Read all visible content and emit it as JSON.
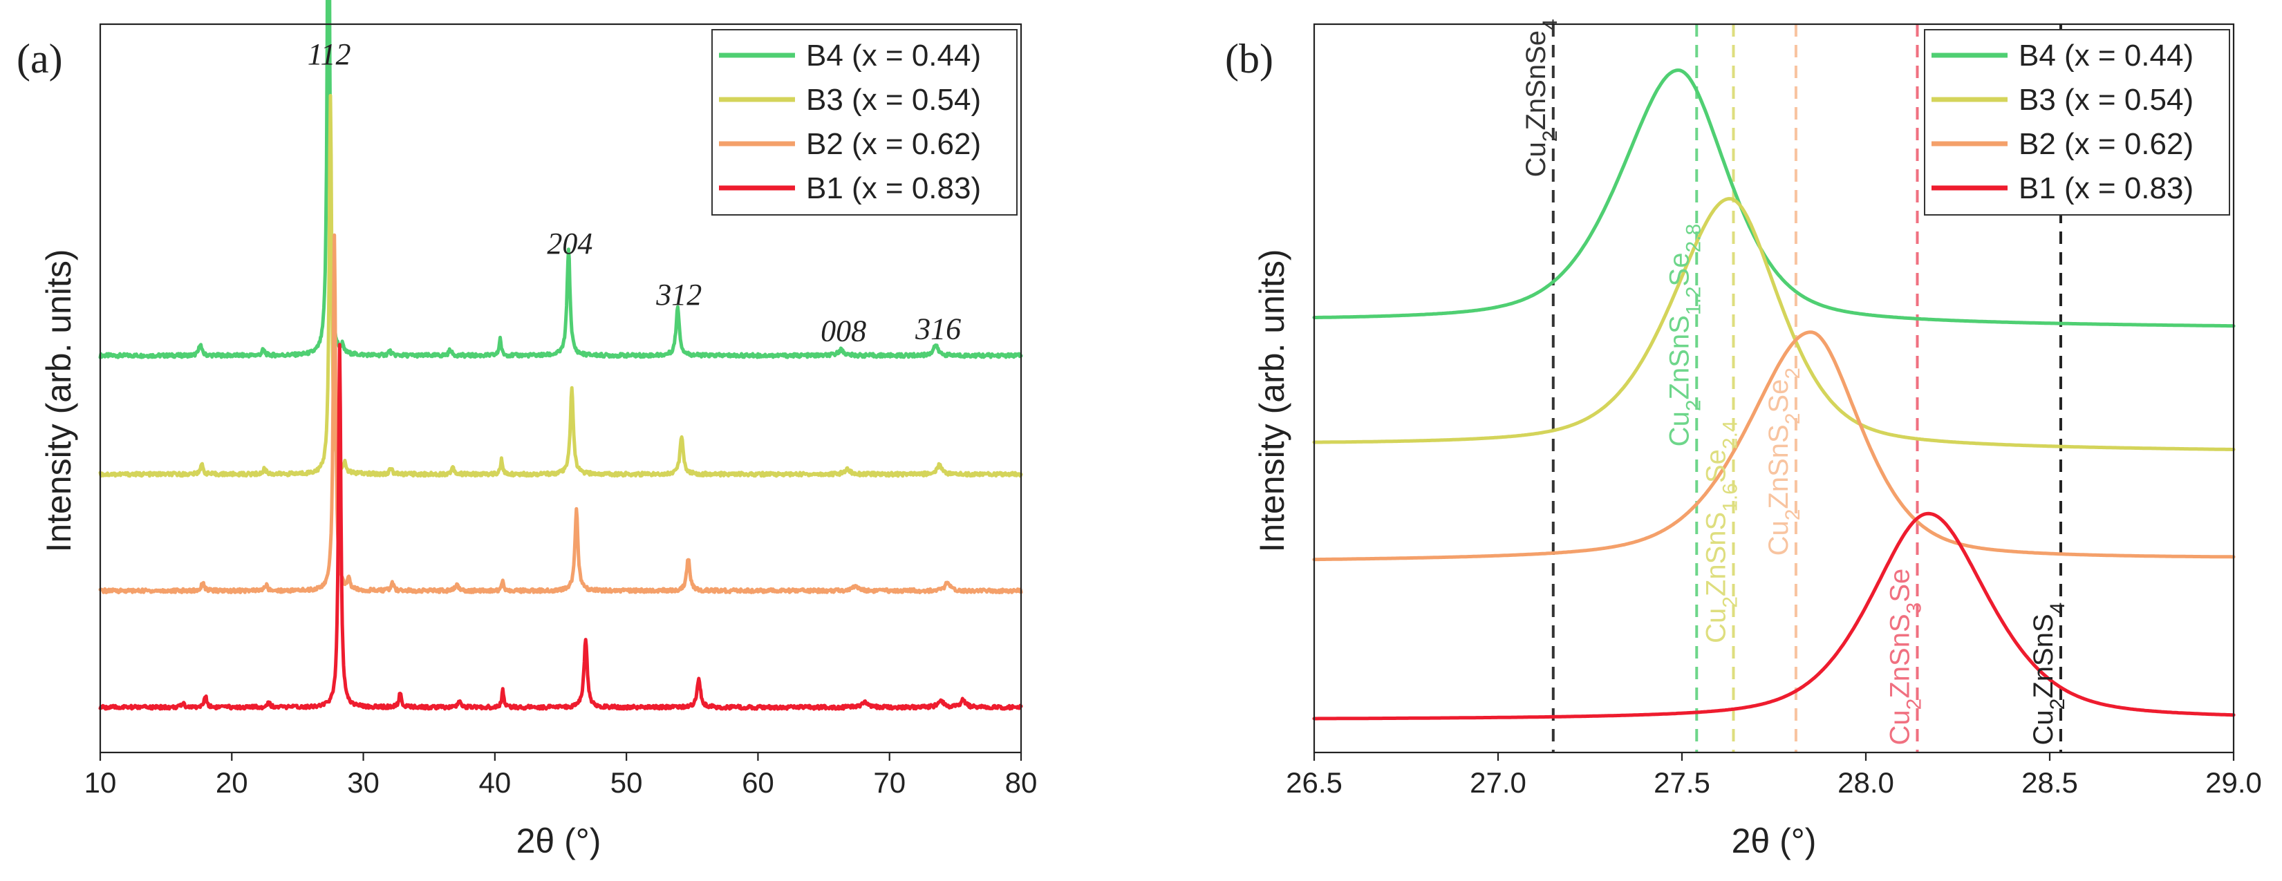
{
  "chart_data": [
    {
      "type": "line",
      "panel_label": "(a)",
      "xlabel": "2θ (°)",
      "ylabel": "Intensity (arb. units)",
      "xlim": [
        10,
        80
      ],
      "ylim": [
        0,
        1
      ],
      "xticks": [
        10,
        20,
        30,
        40,
        50,
        60,
        70,
        80
      ],
      "legend": {
        "placement": "top-right"
      },
      "annotations": [
        {
          "text": "112",
          "x": 27.4,
          "y": 0.945
        },
        {
          "text": "204",
          "x": 45.7,
          "y": 0.685
        },
        {
          "text": "312",
          "x": 54.0,
          "y": 0.615
        },
        {
          "text": "008",
          "x": 66.5,
          "y": 0.565
        },
        {
          "text": "316",
          "x": 73.7,
          "y": 0.568
        }
      ],
      "series": [
        {
          "name": "B4 (x = 0.44)",
          "color": "#4fcf72",
          "baseline": 0.545,
          "noise": 0.0025,
          "peaks": [
            [
              17.6,
              0.016,
              0.25
            ],
            [
              22.4,
              0.008,
              0.25
            ],
            [
              27.35,
              0.845,
              0.2
            ],
            [
              28.4,
              0.01,
              0.2
            ],
            [
              32.0,
              0.006,
              0.25
            ],
            [
              36.6,
              0.008,
              0.25
            ],
            [
              40.4,
              0.024,
              0.18
            ],
            [
              45.6,
              0.147,
              0.28
            ],
            [
              53.9,
              0.067,
              0.3
            ],
            [
              66.3,
              0.008,
              0.5
            ],
            [
              73.5,
              0.014,
              0.45
            ]
          ]
        },
        {
          "name": "B3 (x = 0.54)",
          "color": "#d4d45a",
          "baseline": 0.382,
          "noise": 0.0025,
          "peaks": [
            [
              17.7,
              0.014,
              0.25
            ],
            [
              22.5,
              0.008,
              0.25
            ],
            [
              27.5,
              0.52,
              0.22
            ],
            [
              28.6,
              0.012,
              0.2
            ],
            [
              32.1,
              0.008,
              0.25
            ],
            [
              36.8,
              0.01,
              0.25
            ],
            [
              40.5,
              0.02,
              0.18
            ],
            [
              45.85,
              0.118,
              0.28
            ],
            [
              54.2,
              0.053,
              0.3
            ],
            [
              66.8,
              0.007,
              0.5
            ],
            [
              73.8,
              0.013,
              0.45
            ]
          ]
        },
        {
          "name": "B2 (x = 0.62)",
          "color": "#f4a06a",
          "baseline": 0.222,
          "noise": 0.0025,
          "peaks": [
            [
              17.8,
              0.012,
              0.25
            ],
            [
              22.6,
              0.008,
              0.25
            ],
            [
              27.8,
              0.49,
              0.22
            ],
            [
              28.9,
              0.016,
              0.2
            ],
            [
              32.2,
              0.01,
              0.25
            ],
            [
              37.1,
              0.01,
              0.25
            ],
            [
              40.6,
              0.015,
              0.18
            ],
            [
              46.2,
              0.112,
              0.28
            ],
            [
              54.7,
              0.045,
              0.3
            ],
            [
              67.4,
              0.007,
              0.5
            ],
            [
              74.4,
              0.011,
              0.45
            ]
          ]
        },
        {
          "name": "B1 (x = 0.83)",
          "color": "#ee1c2e",
          "baseline": 0.062,
          "noise": 0.0025,
          "peaks": [
            [
              16.3,
              0.006,
              0.25
            ],
            [
              18.0,
              0.015,
              0.25
            ],
            [
              22.8,
              0.008,
              0.25
            ],
            [
              28.2,
              0.5,
              0.22
            ],
            [
              32.8,
              0.02,
              0.22
            ],
            [
              37.3,
              0.01,
              0.25
            ],
            [
              40.6,
              0.025,
              0.18
            ],
            [
              46.9,
              0.092,
              0.3
            ],
            [
              55.5,
              0.04,
              0.32
            ],
            [
              68.1,
              0.007,
              0.5
            ],
            [
              73.9,
              0.01,
              0.5
            ],
            [
              75.6,
              0.01,
              0.45
            ]
          ]
        }
      ]
    },
    {
      "type": "line",
      "panel_label": "(b)",
      "xlabel": "2θ (°)",
      "ylabel": "Intensity (arb. units)",
      "xlim": [
        26.5,
        29.0
      ],
      "ylim": [
        0,
        1
      ],
      "xticks": [
        26.5,
        27.0,
        27.5,
        28.0,
        28.5,
        29.0
      ],
      "xtick_labels": [
        "26.5",
        "27.0",
        "27.5",
        "28.0",
        "28.5",
        "29.0"
      ],
      "legend": {
        "placement": "top-right"
      },
      "reference_lines": [
        {
          "x": 27.15,
          "label": "Cu2ZnSnSe4",
          "color": "#333333",
          "style": "dashed",
          "label_pos": 0.79
        },
        {
          "x": 27.54,
          "label": "Cu2ZnSnS1.2Se2.8",
          "color": "#6dd68a",
          "style": "dashed",
          "label_pos": 0.42
        },
        {
          "x": 27.64,
          "label": "Cu2ZnSnS1.6Se2.4",
          "color": "#dede7e",
          "style": "dashed",
          "label_pos": 0.15
        },
        {
          "x": 27.81,
          "label": "Cu2ZnSnS2Se2",
          "color": "#f8c4a0",
          "style": "dashed",
          "label_pos": 0.27
        },
        {
          "x": 28.14,
          "label": "Cu2ZnSnS3Se",
          "color": "#f07080",
          "style": "dashed",
          "label_pos": 0.01
        },
        {
          "x": 28.53,
          "label": "Cu2ZnSnS4",
          "color": "#222222",
          "style": "dashed",
          "label_pos": 0.01
        }
      ],
      "series": [
        {
          "name": "B4 (x = 0.44)",
          "color": "#4fcf72",
          "center": 27.49,
          "base": 0.592,
          "offset": -0.008,
          "peak": 0.94,
          "wl": 0.22,
          "wr": 0.19
        },
        {
          "name": "B3 (x = 0.54)",
          "color": "#d4d45a",
          "center": 27.63,
          "base": 0.422,
          "offset": -0.008,
          "peak": 0.764,
          "wl": 0.22,
          "wr": 0.19
        },
        {
          "name": "B2 (x = 0.62)",
          "color": "#f4a06a",
          "center": 27.85,
          "base": 0.262,
          "offset": 0.004,
          "peak": 0.575,
          "wl": 0.24,
          "wr": 0.19
        },
        {
          "name": "B1 (x = 0.83)",
          "color": "#ee1c2e",
          "center": 28.17,
          "base": 0.045,
          "offset": 0.0,
          "peak": 0.328,
          "wl": 0.22,
          "wr": 0.23
        }
      ]
    }
  ]
}
